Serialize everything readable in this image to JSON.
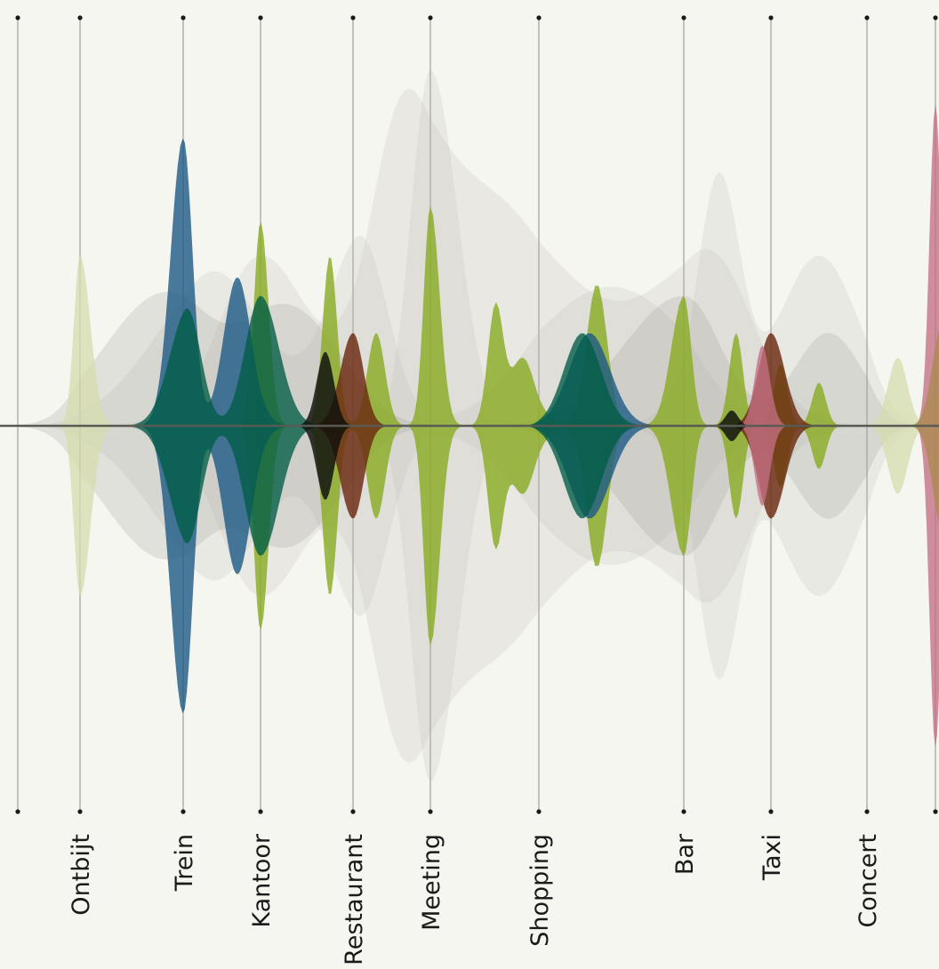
{
  "colors": {
    "background": "#f6f6f1",
    "gridline": "#b5b5b0",
    "baseline": "#5a5a55",
    "dot": "#1a1a1a",
    "label": "#1a1a1a"
  },
  "chart_data": {
    "type": "area",
    "title": "",
    "xlabel": "",
    "ylabel": "",
    "grid": true,
    "legend": "none",
    "symmetric": true,
    "categories": [
      "",
      "Ontbijt",
      "Trein",
      "Kantoor",
      "Restaurant",
      "Meeting",
      "Shopping",
      "Bar",
      "Taxi",
      "Concert",
      ""
    ],
    "labels": [
      {
        "category": "Ontbijt"
      },
      {
        "category": "Trein"
      },
      {
        "category": "Kantoor"
      },
      {
        "category": "Restaurant"
      },
      {
        "category": "Meeting"
      },
      {
        "category": "Shopping"
      },
      {
        "category": "Bar"
      },
      {
        "category": "Taxi"
      },
      {
        "category": "Concert"
      }
    ],
    "series": [
      {
        "color": "#bbb8b3",
        "opacity": 0.22,
        "peaks": [
          {
            "x": 3.0,
            "y": 0.55,
            "w": 0.75
          },
          {
            "x": 4.6,
            "y": 0.85,
            "w": 0.6
          },
          {
            "x": 5.6,
            "y": 0.7,
            "w": 0.9
          },
          {
            "x": 7.3,
            "y": 0.55,
            "w": 0.7
          }
        ]
      },
      {
        "color": "#bbb8b3",
        "opacity": 0.2,
        "peaks": [
          {
            "x": 5.0,
            "y": 1.15,
            "w": 0.35
          },
          {
            "x": 7.4,
            "y": 0.8,
            "w": 0.35
          },
          {
            "x": 8.5,
            "y": 0.55,
            "w": 0.6
          }
        ]
      },
      {
        "color": "#bbb8b3",
        "opacity": 0.2,
        "peaks": [
          {
            "x": 2.4,
            "y": 0.5,
            "w": 0.9
          },
          {
            "x": 4.1,
            "y": 0.6,
            "w": 0.5
          },
          {
            "x": 6.5,
            "y": 0.45,
            "w": 0.8
          }
        ]
      },
      {
        "color": "#909086",
        "opacity": 0.2,
        "peaks": [
          {
            "x": 1.8,
            "y": 0.42,
            "w": 0.8
          },
          {
            "x": 3.3,
            "y": 0.38,
            "w": 0.8
          },
          {
            "x": 7.0,
            "y": 0.42,
            "w": 0.6
          },
          {
            "x": 8.6,
            "y": 0.3,
            "w": 0.5
          }
        ]
      },
      {
        "color": "#d5dcae",
        "opacity": 0.75,
        "peaks": [
          {
            "x": 1.0,
            "y": 0.55,
            "w": 0.14
          },
          {
            "x": 9.45,
            "y": 0.22,
            "w": 0.2
          }
        ]
      },
      {
        "color": "#8aac24",
        "opacity": 0.82,
        "peaks": [
          {
            "x": 3.0,
            "y": 0.66,
            "w": 0.12
          },
          {
            "x": 3.75,
            "y": 0.55,
            "w": 0.11
          },
          {
            "x": 5.0,
            "y": 0.71,
            "w": 0.12
          },
          {
            "x": 5.6,
            "y": 0.38,
            "w": 0.1
          },
          {
            "x": 6.4,
            "y": 0.46,
            "w": 0.1
          },
          {
            "x": 7.0,
            "y": 0.42,
            "w": 0.12
          },
          {
            "x": 7.6,
            "y": 0.3,
            "w": 0.11
          },
          {
            "x": 8.1,
            "y": 0.2,
            "w": 0.1
          },
          {
            "x": 8.5,
            "y": 0.14,
            "w": 0.1
          },
          {
            "x": 4.3,
            "y": 0.3,
            "w": 0.16
          },
          {
            "x": 5.85,
            "y": 0.22,
            "w": 0.16
          }
        ]
      },
      {
        "color": "#1d5a86",
        "opacity": 0.8,
        "peaks": [
          {
            "x": 2.0,
            "y": 0.93,
            "w": 0.17
          },
          {
            "x": 2.7,
            "y": 0.48,
            "w": 0.25
          },
          {
            "x": 6.35,
            "y": 0.3,
            "w": 0.2
          }
        ]
      },
      {
        "color": "#005c45",
        "opacity": 0.78,
        "peaks": [
          {
            "x": 2.05,
            "y": 0.38,
            "w": 0.25
          },
          {
            "x": 3.0,
            "y": 0.42,
            "w": 0.28
          },
          {
            "x": 6.3,
            "y": 0.3,
            "w": 0.18
          }
        ]
      },
      {
        "color": "#6b2a10",
        "opacity": 0.82,
        "peaks": [
          {
            "x": 4.0,
            "y": 0.3,
            "w": 0.19
          },
          {
            "x": 8.0,
            "y": 0.3,
            "w": 0.2
          }
        ]
      },
      {
        "color": "#c46e83",
        "opacity": 0.78,
        "peaks": [
          {
            "x": 10.0,
            "y": 1.04,
            "w": 0.12
          },
          {
            "x": 7.9,
            "y": 0.26,
            "w": 0.12
          }
        ]
      },
      {
        "color": "#a68a48",
        "opacity": 0.7,
        "peaks": [
          {
            "x": 10.1,
            "y": 0.33,
            "w": 0.2
          }
        ]
      },
      {
        "color": "#0e0e0e",
        "opacity": 0.82,
        "peaks": [
          {
            "x": 3.7,
            "y": 0.24,
            "w": 0.13
          },
          {
            "x": 7.55,
            "y": 0.05,
            "w": 0.1
          }
        ]
      }
    ]
  }
}
